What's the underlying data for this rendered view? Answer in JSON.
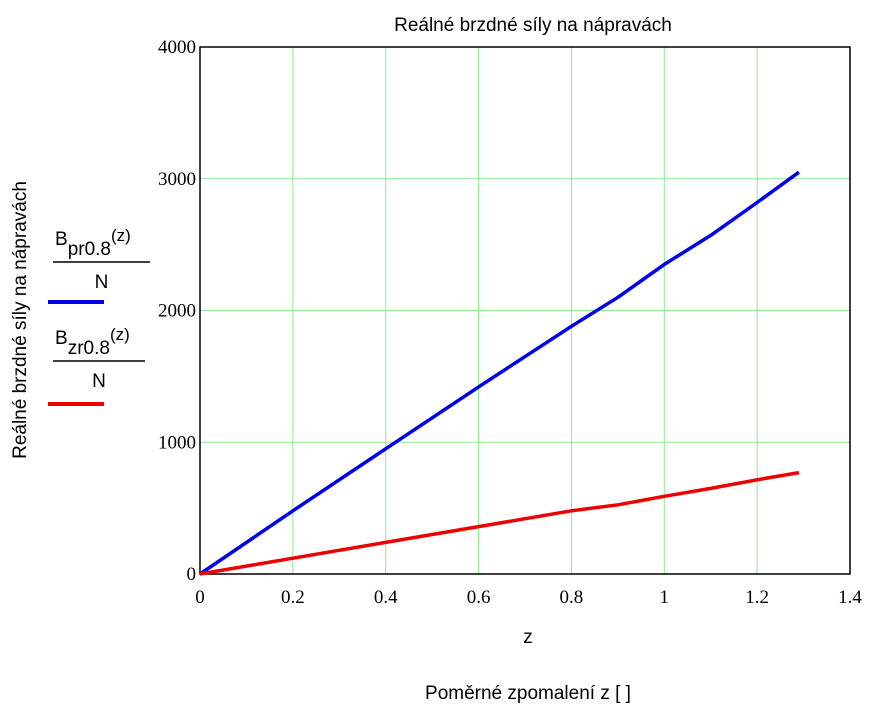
{
  "chart_data": {
    "type": "line",
    "title": "Reálné brzdné síly na nápravách",
    "xlabel": "z",
    "xlabel_secondary": "Poměrné zpomalení z [ ]",
    "ylabel": "Reálné brzdné síly na nápravách",
    "xlim": [
      0,
      1.4
    ],
    "ylim": [
      0,
      4000
    ],
    "x_ticks": [
      "0",
      "0.2",
      "0.4",
      "0.6",
      "0.8",
      "1",
      "1.2",
      "1.4"
    ],
    "y_ticks": [
      "0",
      "1000",
      "2000",
      "3000",
      "4000"
    ],
    "grid": true,
    "legend_position": "left",
    "series": [
      {
        "name": "Bpr0.8(z)/N",
        "legend": {
          "base": "B",
          "sub": "pr0.8",
          "arg": "(z)",
          "denominator": "N"
        },
        "color": "#0000ee",
        "x": [
          0,
          0.2,
          0.4,
          0.6,
          0.8,
          0.9,
          1.0,
          1.1,
          1.2,
          1.29
        ],
        "values": [
          0,
          480,
          950,
          1420,
          1880,
          2100,
          2350,
          2570,
          2820,
          3050
        ]
      },
      {
        "name": "Bzr0.8(z)/N",
        "legend": {
          "base": "B",
          "sub": "zr0.8",
          "arg": "(z)",
          "denominator": "N"
        },
        "color": "#ee0000",
        "x": [
          0,
          0.2,
          0.4,
          0.6,
          0.8,
          0.9,
          1.0,
          1.1,
          1.2,
          1.29
        ],
        "values": [
          0,
          120,
          240,
          360,
          480,
          525,
          590,
          650,
          715,
          770
        ]
      }
    ]
  }
}
